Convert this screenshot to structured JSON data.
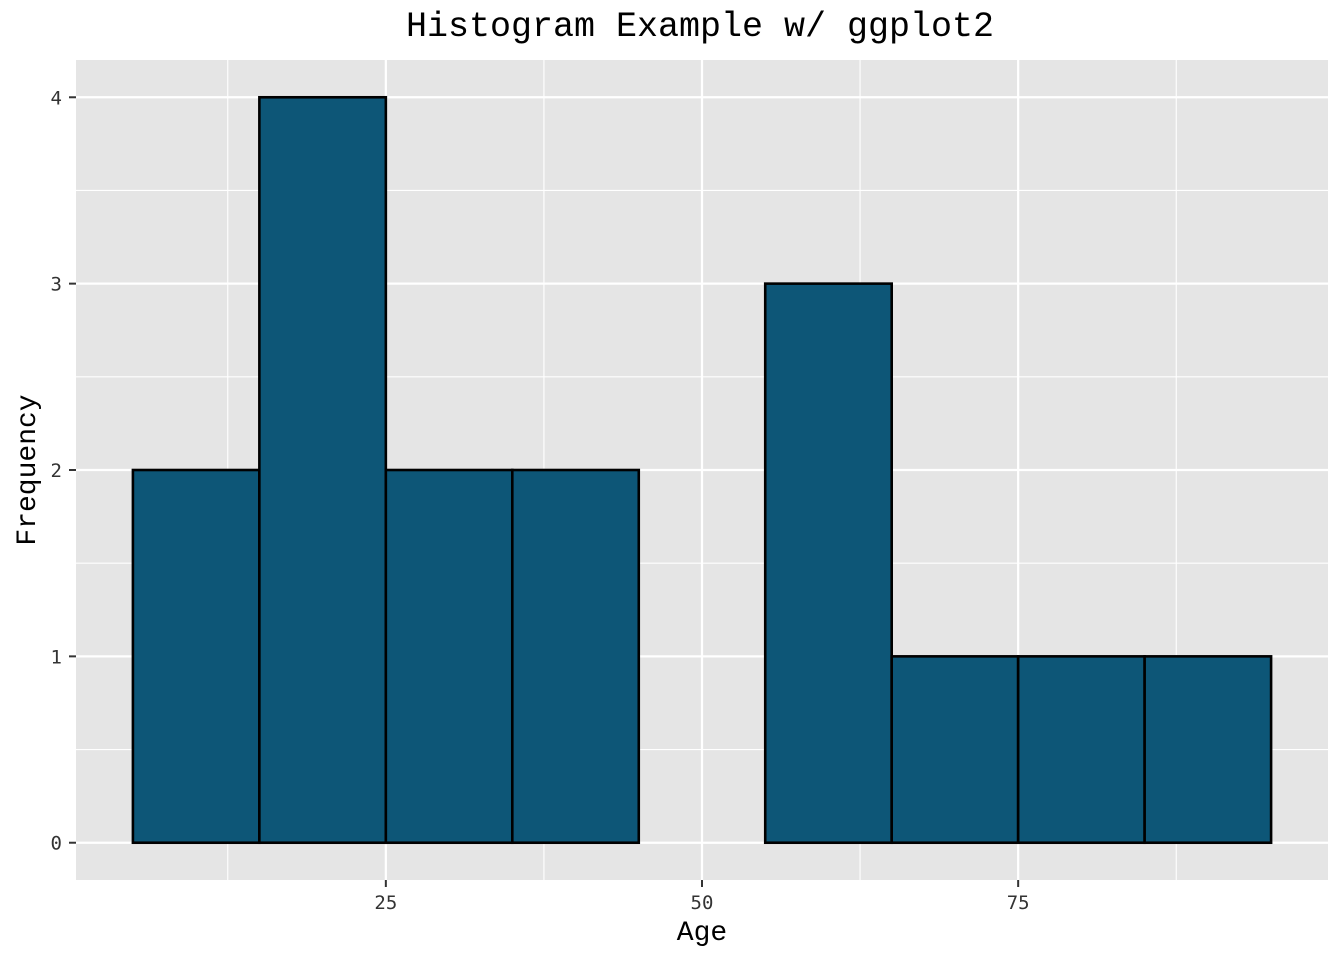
{
  "chart_data": {
    "type": "bar",
    "subtype": "histogram",
    "title": "Histogram Example w/ ggplot2",
    "xlabel": "Age",
    "ylabel": "Frequency",
    "bins": [
      {
        "start": 5,
        "end": 15,
        "count": 2
      },
      {
        "start": 15,
        "end": 25,
        "count": 4
      },
      {
        "start": 25,
        "end": 35,
        "count": 2
      },
      {
        "start": 35,
        "end": 45,
        "count": 2
      },
      {
        "start": 45,
        "end": 55,
        "count": 0
      },
      {
        "start": 55,
        "end": 65,
        "count": 3
      },
      {
        "start": 65,
        "end": 75,
        "count": 1
      },
      {
        "start": 75,
        "end": 85,
        "count": 1
      },
      {
        "start": 85,
        "end": 95,
        "count": 1
      }
    ],
    "xlim": [
      0.5,
      99.5
    ],
    "ylim": [
      -0.2,
      4.2
    ],
    "x_ticks": [
      {
        "value": 25,
        "label": "25"
      },
      {
        "value": 50,
        "label": "50"
      },
      {
        "value": 75,
        "label": "75"
      }
    ],
    "x_minor": [
      12.5,
      37.5,
      62.5,
      87.5
    ],
    "y_ticks": [
      {
        "value": 0,
        "label": "0"
      },
      {
        "value": 1,
        "label": "1"
      },
      {
        "value": 2,
        "label": "2"
      },
      {
        "value": 3,
        "label": "3"
      },
      {
        "value": 4,
        "label": "4"
      }
    ],
    "y_minor": [
      0.5,
      1.5,
      2.5,
      3.5
    ],
    "grid": true,
    "legend": "none",
    "colors": {
      "bar_fill": "#0d5677",
      "bar_outline": "#000000",
      "panel_background": "#e5e5e5",
      "grid": "#ffffff"
    }
  }
}
